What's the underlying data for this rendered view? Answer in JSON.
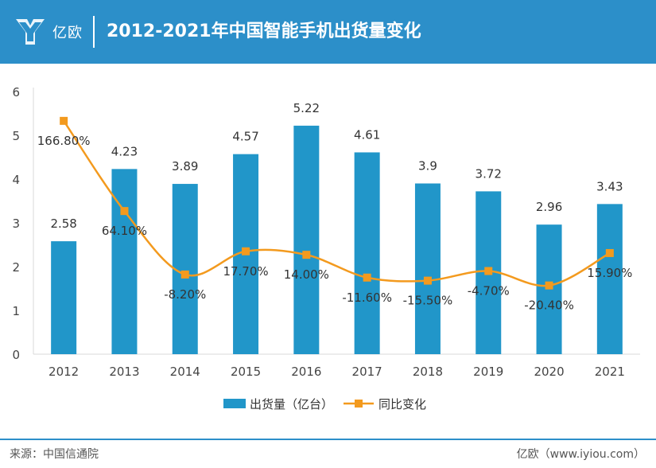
{
  "header": {
    "brand": "亿欧",
    "title": "2012-2021年中国智能手机出货量变化",
    "color": "#2c8fc9"
  },
  "chart_data": {
    "type": "bar",
    "categories": [
      "2012",
      "2013",
      "2014",
      "2015",
      "2016",
      "2017",
      "2018",
      "2019",
      "2020",
      "2021"
    ],
    "series": [
      {
        "name": "出货量（亿台）",
        "type": "bar",
        "color": "#2196c9",
        "values": [
          2.58,
          4.23,
          3.89,
          4.57,
          5.22,
          4.61,
          3.9,
          3.72,
          2.96,
          3.43
        ],
        "labels": [
          "2.58",
          "4.23",
          "3.89",
          "4.57",
          "5.22",
          "4.61",
          "3.9",
          "3.72",
          "2.96",
          "3.43"
        ]
      },
      {
        "name": "同比变化",
        "type": "line",
        "color": "#f39a1e",
        "marker": "square",
        "smooth": true,
        "values": [
          166.8,
          64.1,
          -8.2,
          17.7,
          14.0,
          -11.6,
          -15.5,
          -4.7,
          -20.4,
          15.9
        ],
        "labels": [
          "166.80%",
          "64.10%",
          "-8.20%",
          "17.70%",
          "14.00%",
          "-11.60%",
          "-15.50%",
          "-4.70%",
          "-20.40%",
          "15.90%"
        ],
        "plotted_on_left_axis": [
          5.33,
          3.27,
          1.82,
          2.35,
          2.27,
          1.75,
          1.68,
          1.9,
          1.57,
          2.31
        ]
      }
    ],
    "ylim": [
      0,
      6
    ],
    "yticks": [
      "0",
      "1",
      "2",
      "3",
      "4",
      "5",
      "6"
    ],
    "legend_position": "bottom",
    "title": "",
    "xlabel": "",
    "ylabel": ""
  },
  "footer": {
    "source": "来源：中国信通院",
    "credit": "亿欧（www.iyiou.com）"
  }
}
